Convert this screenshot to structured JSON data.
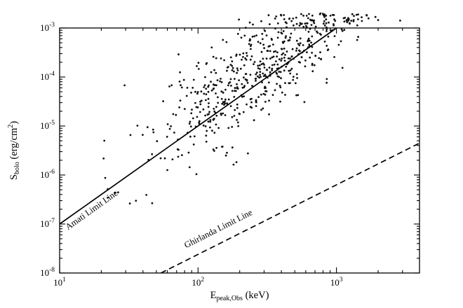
{
  "colors": {
    "foreground": "#000000",
    "background": "#ffffff",
    "points": "#111111"
  },
  "chart_data": {
    "type": "scatter",
    "title": "",
    "xlabel": "E_peak,Obs (keV)",
    "ylabel": "S_bolo (erg/cm^2)",
    "x_title_parts": {
      "main": "E",
      "sub": "peak,Obs",
      "rest": " (keV)"
    },
    "y_title_parts": {
      "main": "S",
      "sub": "bolo",
      "rest": " (erg/cm",
      "sup": "2",
      "close": ")"
    },
    "x_scale": "log",
    "y_scale": "log",
    "xlim_log10": [
      1,
      3.6
    ],
    "ylim_log10": [
      -8,
      -3
    ],
    "grid": false,
    "legend": "none",
    "x_major_ticks": [
      {
        "log10": 1,
        "label_base": "10",
        "label_exp": "1"
      },
      {
        "log10": 2,
        "label_base": "10",
        "label_exp": "2"
      },
      {
        "log10": 3,
        "label_base": "10",
        "label_exp": "3"
      }
    ],
    "y_major_ticks": [
      {
        "log10": -8,
        "label_base": "10",
        "label_exp": "-8"
      },
      {
        "log10": -7,
        "label_base": "10",
        "label_exp": "-7"
      },
      {
        "log10": -6,
        "label_base": "10",
        "label_exp": "-6"
      },
      {
        "log10": -5,
        "label_base": "10",
        "label_exp": "-5"
      },
      {
        "log10": -4,
        "label_base": "10",
        "label_exp": "-4"
      },
      {
        "log10": -3,
        "label_base": "10",
        "label_exp": "-3"
      }
    ],
    "lines": [
      {
        "id": "amati-limit-line",
        "label": "Amati Limit Line",
        "style": "solid",
        "points": [
          [
            10,
            1e-07
          ],
          [
            1000,
            0.001
          ]
        ],
        "label_anchor": {
          "x": 11.5,
          "y": 7.5e-08
        },
        "label_rotation_deg": -35.5
      },
      {
        "id": "ghirlanda-limit-line",
        "label": "Ghirlanda Limit Line",
        "style": "dashed",
        "points": [
          [
            54,
            1e-08
          ],
          [
            4000,
            4.5e-06
          ]
        ],
        "label_anchor": {
          "x": 82,
          "y": 3.2e-08
        },
        "label_rotation_deg": -27
      }
    ],
    "scatter_model": {
      "n": 600,
      "seed": 1337,
      "logx_mean": 2.42,
      "logx_sd": 0.38,
      "logx_min": 1.22,
      "logx_max": 3.52,
      "relation_slope": 2,
      "relation_intercept": -9,
      "offset_mean": 0.28,
      "offset_sd": 0.55,
      "offset_min": -1.3,
      "offset_max": 1.9,
      "logy_min": -6.6,
      "logy_max": -2.7,
      "point_radius": 1.4
    }
  }
}
